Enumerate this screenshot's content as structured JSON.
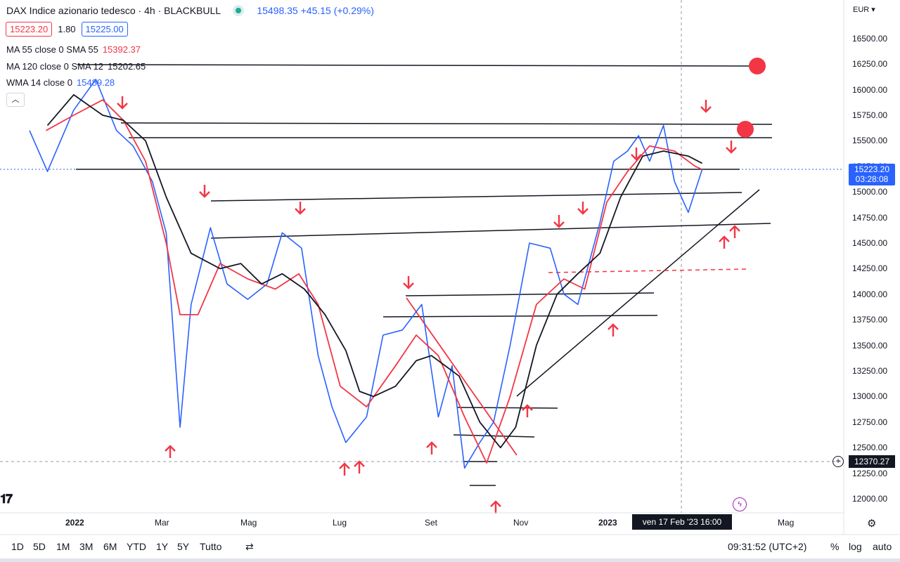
{
  "header": {
    "title": "DAX Indice azionario tedesco · 4h · BLACKBULL",
    "price": "15498.35",
    "change": "+45.15 (+0.29%)",
    "bid": "15223.20",
    "spread": "1.80",
    "ask": "15225.00"
  },
  "indicators": [
    {
      "label": "MA 55 close 0 SMA 55",
      "value": "15392.37",
      "color": "#f23645"
    },
    {
      "label": "MA 120 close 0 SMA 12",
      "value": "15202.65",
      "color": "#131722"
    },
    {
      "label": "WMA 14 close 0",
      "value": "15489.28",
      "color": "#2962ff"
    }
  ],
  "currency_menu": "EUR",
  "price_axis": {
    "ticks": [
      "16500.00",
      "16250.00",
      "16000.00",
      "15750.00",
      "15500.00",
      "15250.00",
      "15000.00",
      "14750.00",
      "14500.00",
      "14250.00",
      "14000.00",
      "13750.00",
      "13500.00",
      "13250.00",
      "13000.00",
      "12750.00",
      "12500.00",
      "12250.00",
      "12000.00"
    ],
    "current_price": "15223.20",
    "countdown": "03:28:08",
    "crosshair_price": "12370.27"
  },
  "time_axis": {
    "labels": [
      {
        "text": "2022",
        "bold": true
      },
      {
        "text": "Mar",
        "bold": false
      },
      {
        "text": "Mag",
        "bold": false
      },
      {
        "text": "Lug",
        "bold": false
      },
      {
        "text": "Set",
        "bold": false
      },
      {
        "text": "Nov",
        "bold": false
      },
      {
        "text": "2023",
        "bold": true
      },
      {
        "text": "Mag",
        "bold": false
      }
    ],
    "crosshair_date": "ven 17 Feb '23   16:00"
  },
  "bottom_bar": {
    "timeframes": [
      "1D",
      "5D",
      "1M",
      "3M",
      "6M",
      "YTD",
      "1Y",
      "5Y",
      "Tutto"
    ],
    "clock": "09:31:52 (UTC+2)",
    "percent": "%",
    "log": "log",
    "auto": "auto"
  },
  "chart_data": {
    "type": "line",
    "ylim": [
      11850,
      16750
    ],
    "x_range": [
      "2021-11-17",
      "2023-05-31"
    ],
    "series": [
      {
        "name": "WMA 14 close 0",
        "color": "#2962ff",
        "x": [
          "2021-11-18",
          "2021-12-01",
          "2021-12-20",
          "2022-01-05",
          "2022-01-20",
          "2022-02-01",
          "2022-02-15",
          "2022-02-25",
          "2022-03-07",
          "2022-03-15",
          "2022-03-29",
          "2022-04-10",
          "2022-04-25",
          "2022-05-09",
          "2022-05-20",
          "2022-06-03",
          "2022-06-15",
          "2022-06-25",
          "2022-07-05",
          "2022-07-20",
          "2022-08-01",
          "2022-08-15",
          "2022-08-29",
          "2022-09-10",
          "2022-09-20",
          "2022-09-29",
          "2022-10-10",
          "2022-10-20",
          "2022-11-01",
          "2022-11-15",
          "2022-11-30",
          "2022-12-10",
          "2022-12-20",
          "2023-01-05",
          "2023-01-15",
          "2023-01-25",
          "2023-02-02",
          "2023-02-10",
          "2023-02-20",
          "2023-02-28",
          "2023-03-10",
          "2023-03-20"
        ],
        "values": [
          15600,
          15200,
          15800,
          16100,
          15600,
          15450,
          15100,
          14600,
          12700,
          13900,
          14650,
          14100,
          13950,
          14100,
          14600,
          14450,
          13400,
          12900,
          12550,
          12800,
          13600,
          13650,
          13900,
          12800,
          13300,
          12300,
          12550,
          12750,
          13500,
          14500,
          14450,
          14000,
          13900,
          14700,
          15300,
          15400,
          15550,
          15300,
          15650,
          15100,
          14800,
          15220
        ]
      },
      {
        "name": "MA 55 close 0 SMA 55",
        "color": "#f23645",
        "x": [
          "2021-11-30",
          "2021-12-20",
          "2022-01-10",
          "2022-01-25",
          "2022-02-10",
          "2022-02-25",
          "2022-03-07",
          "2022-03-20",
          "2022-04-05",
          "2022-04-25",
          "2022-05-15",
          "2022-06-01",
          "2022-06-15",
          "2022-07-01",
          "2022-07-20",
          "2022-08-10",
          "2022-08-25",
          "2022-09-10",
          "2022-09-29",
          "2022-10-15",
          "2022-11-01",
          "2022-11-20",
          "2022-12-10",
          "2022-12-25",
          "2023-01-10",
          "2023-01-25",
          "2023-02-10",
          "2023-02-28",
          "2023-03-15",
          "2023-03-20"
        ],
        "values": [
          15600,
          15750,
          15900,
          15700,
          15300,
          14500,
          13800,
          13800,
          14300,
          14150,
          14050,
          14200,
          13900,
          13100,
          12900,
          13300,
          13600,
          13400,
          12800,
          12350,
          13000,
          13900,
          14150,
          14050,
          14900,
          15200,
          15450,
          15400,
          15250,
          15220
        ]
      },
      {
        "name": "MA 120 close 0 SMA 12",
        "color": "#131722",
        "x": [
          "2021-12-01",
          "2021-12-20",
          "2022-01-10",
          "2022-01-25",
          "2022-02-10",
          "2022-02-25",
          "2022-03-15",
          "2022-04-05",
          "2022-04-20",
          "2022-05-05",
          "2022-05-20",
          "2022-06-05",
          "2022-06-20",
          "2022-07-05",
          "2022-07-15",
          "2022-07-25",
          "2022-08-10",
          "2022-08-25",
          "2022-09-05",
          "2022-09-25",
          "2022-10-10",
          "2022-10-25",
          "2022-11-05",
          "2022-11-20",
          "2022-12-05",
          "2022-12-20",
          "2023-01-05",
          "2023-01-20",
          "2023-02-05",
          "2023-02-20",
          "2023-03-10",
          "2023-03-20"
        ],
        "values": [
          15650,
          15950,
          15750,
          15700,
          15500,
          14950,
          14400,
          14250,
          14300,
          14100,
          14200,
          14050,
          13800,
          13450,
          13050,
          13000,
          13100,
          13350,
          13400,
          13200,
          12750,
          12500,
          12700,
          13500,
          14000,
          14200,
          14400,
          14950,
          15350,
          15400,
          15350,
          15280
        ]
      }
    ],
    "annotations": [
      "horizontal level 16230",
      "horizontal level 15670",
      "horizontal level 15520",
      "horizontal level 15220",
      "horizontal level 14950-15000",
      "horizontal level 14550-14700",
      "dashed red level 14200-14250",
      "horizontal level 13970-14000",
      "horizontal level 13780",
      "horizontal level 12900",
      "horizontal level 12620",
      "horizontal level 12370",
      "horizontal level 12140",
      "rising trendline 13000 to 15030",
      "falling red trendline 13950 to 12480",
      "red circle markers at 16230 and 15630"
    ]
  }
}
